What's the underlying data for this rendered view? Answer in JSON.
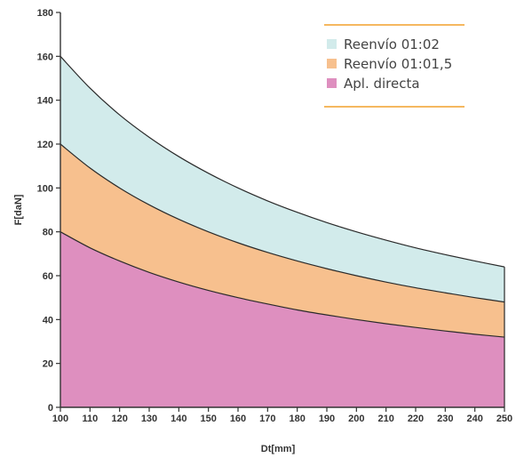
{
  "chart_data": {
    "type": "area",
    "title": "",
    "xlabel": "Dt[mm]",
    "ylabel": "F[daN]",
    "xlim": [
      100,
      250
    ],
    "ylim": [
      0,
      180
    ],
    "x_ticks": [
      100,
      110,
      120,
      130,
      140,
      150,
      160,
      170,
      180,
      190,
      200,
      210,
      220,
      230,
      240,
      250
    ],
    "y_ticks": [
      0,
      20,
      40,
      60,
      80,
      100,
      120,
      140,
      160,
      180
    ],
    "grid": false,
    "legend_position": "top-right",
    "x": [
      100,
      110,
      120,
      130,
      140,
      150,
      160,
      170,
      180,
      190,
      200,
      210,
      220,
      230,
      240,
      250
    ],
    "series": [
      {
        "name": "Reenvío 01:02",
        "color": "#d2ebeb",
        "values": [
          160,
          145.5,
          133.3,
          123.1,
          114.3,
          106.7,
          100,
          94.1,
          88.9,
          84.2,
          80,
          76.2,
          72.7,
          69.6,
          66.7,
          64
        ]
      },
      {
        "name": "Reenvío 01:01,5",
        "color": "#f7c08e",
        "values": [
          120,
          109.1,
          100,
          92.3,
          85.7,
          80,
          75,
          70.6,
          66.7,
          63.2,
          60,
          57.1,
          54.5,
          52.2,
          50,
          48
        ]
      },
      {
        "name": "Apl. directa",
        "color": "#de8fbf",
        "values": [
          80,
          72.7,
          66.7,
          61.5,
          57.1,
          53.3,
          50,
          47.1,
          44.4,
          42.1,
          40,
          38.1,
          36.4,
          34.8,
          33.3,
          32
        ]
      }
    ],
    "legend_line_color": "#f5b860"
  }
}
